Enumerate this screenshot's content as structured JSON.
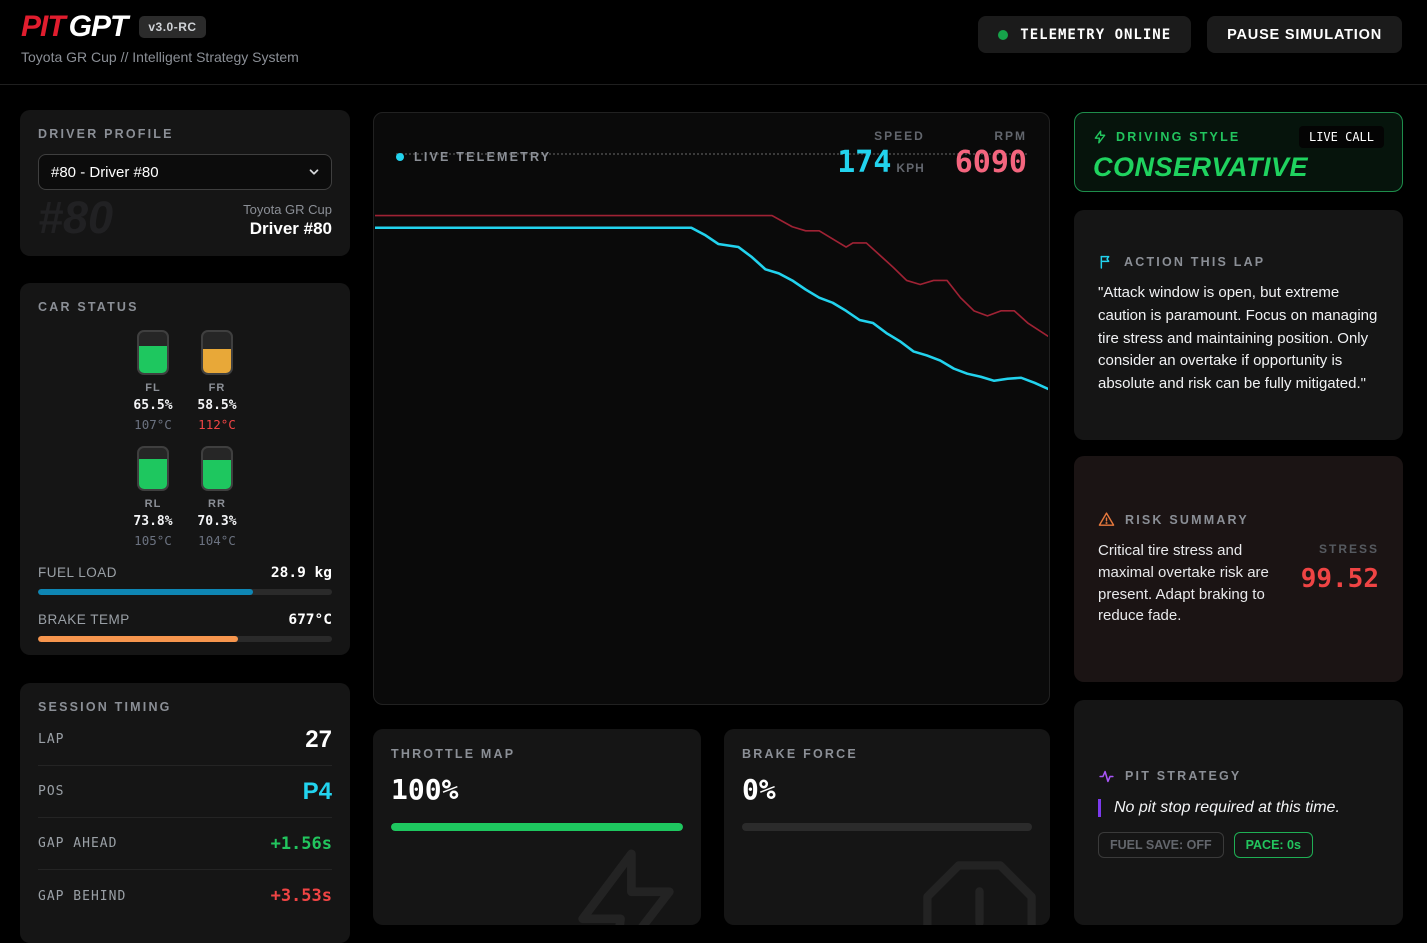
{
  "header": {
    "logo_pit": "PIT",
    "logo_gpt": "GPT",
    "version": "v3.0-RC",
    "subtitle": "Toyota GR Cup // Intelligent Strategy System",
    "telemetry_status": "TELEMETRY ONLINE",
    "pause_button": "PAUSE SIMULATION"
  },
  "driver_profile": {
    "title": "DRIVER PROFILE",
    "selected_option": "#80 - Driver #80",
    "watermark": "#80",
    "series": "Toyota GR Cup",
    "driver_name": "Driver #80"
  },
  "car_status": {
    "title": "CAR STATUS",
    "tires": [
      {
        "pos": "FL",
        "wear": 65.5,
        "wear_label": "65.5%",
        "temp": "107°C",
        "temp_alert": false,
        "color": "#1ec75f"
      },
      {
        "pos": "FR",
        "wear": 58.5,
        "wear_label": "58.5%",
        "temp": "112°C",
        "temp_alert": true,
        "color": "#e8a838"
      },
      {
        "pos": "RL",
        "wear": 73.8,
        "wear_label": "73.8%",
        "temp": "105°C",
        "temp_alert": false,
        "color": "#1ec75f"
      },
      {
        "pos": "RR",
        "wear": 70.3,
        "wear_label": "70.3%",
        "temp": "104°C",
        "temp_alert": false,
        "color": "#1ec75f"
      }
    ],
    "fuel": {
      "label": "FUEL LOAD",
      "value": "28.9 kg",
      "pct": 73,
      "color": "#0e86b4"
    },
    "brake": {
      "label": "BRAKE TEMP",
      "value": "677°C",
      "pct": 68,
      "color": "#f6954d"
    }
  },
  "session_timing": {
    "title": "SESSION TIMING",
    "rows": [
      {
        "label": "LAP",
        "value": "27",
        "style": "sv-white"
      },
      {
        "label": "POS",
        "value": "P4",
        "style": "sv-cyan"
      },
      {
        "label": "GAP AHEAD",
        "value": "+1.56s",
        "style": "sv-green"
      },
      {
        "label": "GAP BEHIND",
        "value": "+3.53s",
        "style": "sv-red"
      }
    ]
  },
  "telemetry": {
    "title": "LIVE TELEMETRY",
    "speed_label": "SPEED",
    "speed_value": "174",
    "speed_unit": "KPH",
    "rpm_label": "RPM",
    "rpm_value": "6090",
    "chart_data": {
      "type": "line",
      "x_axis": "time (hidden)",
      "grid": "single dotted top gridline",
      "series": [
        {
          "name": "speed",
          "color": "#22d3ee",
          "width": 2.5,
          "points": [
            [
              0,
              56
            ],
            [
              47,
              56
            ],
            [
              49,
              63
            ],
            [
              51,
              72
            ],
            [
              54,
              75
            ],
            [
              56,
              85
            ],
            [
              58,
              97
            ],
            [
              60,
              101
            ],
            [
              62,
              108
            ],
            [
              64,
              117
            ],
            [
              66,
              125
            ],
            [
              68,
              130
            ],
            [
              70,
              138
            ],
            [
              72,
              147
            ],
            [
              74,
              150
            ],
            [
              76,
              160
            ],
            [
              78,
              168
            ],
            [
              80,
              178
            ],
            [
              82,
              182
            ],
            [
              84,
              187
            ],
            [
              86,
              195
            ],
            [
              88,
              200
            ],
            [
              90,
              203
            ],
            [
              92,
              207
            ],
            [
              94,
              205
            ],
            [
              96,
              204
            ],
            [
              98,
              209
            ],
            [
              100,
              215
            ]
          ]
        },
        {
          "name": "rpm",
          "color": "#9f2234",
          "width": 1.6,
          "points": [
            [
              0,
              44
            ],
            [
              59,
              44
            ],
            [
              62,
              55
            ],
            [
              64,
              59
            ],
            [
              66,
              59
            ],
            [
              68,
              67
            ],
            [
              70,
              75
            ],
            [
              71,
              71
            ],
            [
              73,
              71
            ],
            [
              75,
              83
            ],
            [
              77,
              95
            ],
            [
              79,
              108
            ],
            [
              81,
              112
            ],
            [
              83,
              108
            ],
            [
              85,
              108
            ],
            [
              87,
              125
            ],
            [
              89,
              138
            ],
            [
              91,
              143
            ],
            [
              93,
              138
            ],
            [
              95,
              138
            ],
            [
              97,
              150
            ],
            [
              100,
              163
            ]
          ]
        }
      ]
    }
  },
  "throttle": {
    "title": "THROTTLE MAP",
    "value": "100%",
    "pct": 100,
    "color": "#1ec75f"
  },
  "brake_force": {
    "title": "BRAKE FORCE",
    "value": "0%",
    "pct": 0,
    "color": "#1ec75f"
  },
  "driving_style": {
    "title": "DRIVING STYLE",
    "badge": "LIVE CALL",
    "value": "CONSERVATIVE"
  },
  "action": {
    "title": "ACTION THIS LAP",
    "text": "\"Attack window is open, but extreme caution is paramount. Focus on managing tire stress and maintaining position. Only consider an overtake if opportunity is absolute and risk can be fully mitigated.\""
  },
  "risk": {
    "title": "RISK SUMMARY",
    "text": "Critical tire stress and maximal overtake risk are present. Adapt braking to reduce fade.",
    "stress_label": "STRESS",
    "stress_value": "99.52"
  },
  "pit": {
    "title": "PIT STRATEGY",
    "message": "No pit stop required at this time.",
    "badges": [
      {
        "label": "FUEL SAVE: OFF",
        "green": false
      },
      {
        "label": "PACE: 0s",
        "green": true
      }
    ]
  },
  "colors": {
    "accent_cyan": "#22d3ee",
    "accent_green": "#22c55e",
    "accent_red": "#ef4444",
    "accent_amber": "#e8a838",
    "accent_orange": "#f6954d",
    "accent_blue": "#0e86b4",
    "accent_rose": "#f4657e",
    "rpm_line": "#9f2234",
    "accent_purple": "#8b5cf6",
    "logo_red": "#e11d2e"
  }
}
